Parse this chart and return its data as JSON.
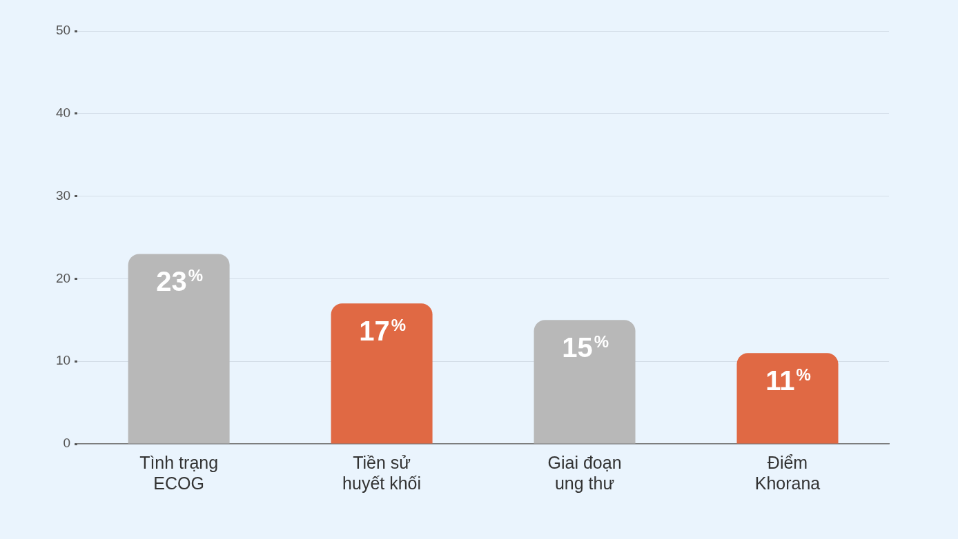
{
  "chart_data": {
    "type": "bar",
    "categories": [
      "Tình trạng ECOG",
      "Tiền sử huyết khối",
      "Giai đoạn ung thư",
      "Điểm Khorana"
    ],
    "values": [
      23,
      17,
      15,
      11
    ],
    "colors": [
      "#b8b8b8",
      "#e06944",
      "#b8b8b8",
      "#e06944"
    ],
    "value_labels": [
      "23%",
      "17%",
      "15%",
      "11%"
    ],
    "ylim": [
      0,
      50
    ],
    "yticks": [
      0,
      10,
      20,
      30,
      40,
      50
    ],
    "grid": "y",
    "legend": false
  }
}
